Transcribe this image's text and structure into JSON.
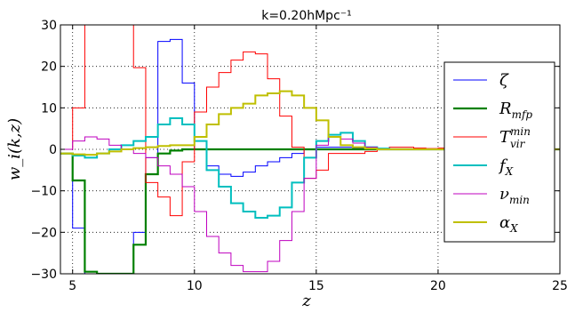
{
  "chart_data": {
    "type": "line",
    "step": true,
    "title": "k=0.20hMpc⁻¹",
    "xlabel": "z",
    "ylabel": "w_i(k,z)",
    "xlim": [
      4.5,
      25
    ],
    "ylim": [
      -30,
      30
    ],
    "x_ticks": [
      5,
      10,
      15,
      20,
      25
    ],
    "y_ticks": [
      -30,
      -20,
      -10,
      0,
      10,
      20,
      30
    ],
    "x_tick_labels": [
      "5",
      "10",
      "15",
      "20",
      "25"
    ],
    "y_tick_labels": [
      "−30",
      "−20",
      "−10",
      "0",
      "10",
      "20",
      "30"
    ],
    "grid": true,
    "legend_position": "right",
    "x_edges": [
      4.5,
      5,
      5.5,
      6,
      6.5,
      7,
      7.5,
      8,
      8.5,
      9,
      9.5,
      10,
      10.5,
      11,
      11.5,
      12,
      12.5,
      13,
      13.5,
      14,
      14.5,
      15,
      15.5,
      16,
      16.5,
      17,
      17.5,
      18,
      18.5,
      19,
      19.5,
      20,
      20.5,
      21,
      21.5,
      22,
      22.5,
      23,
      23.5,
      24,
      24.5,
      25
    ],
    "series": [
      {
        "name": "ζ",
        "sub": "",
        "sup": "",
        "color": "#0000ff",
        "width": 1,
        "values": [
          -1,
          -19,
          -30,
          -30,
          -30,
          -30,
          -20,
          -2,
          26,
          26.5,
          16,
          0,
          -4,
          -6,
          -6.5,
          -5.5,
          -4,
          -3,
          -2,
          -1,
          0,
          0.5,
          0.5,
          0.5,
          0.3,
          0.2,
          0.1,
          0,
          0,
          0,
          0,
          0,
          0,
          0,
          0,
          0,
          0,
          0,
          0,
          0,
          0
        ]
      },
      {
        "name": "R",
        "sub": "mfp",
        "sup": "",
        "color": "#008000",
        "width": 2.2,
        "values": [
          -1,
          -7.5,
          -29.5,
          -30,
          -30,
          -30,
          -23,
          -6,
          -1,
          -0.3,
          0,
          0,
          0,
          0,
          0,
          0,
          0,
          0,
          0,
          0,
          0,
          0,
          0,
          0,
          0,
          0,
          0,
          0,
          0,
          0,
          0,
          0,
          0,
          0,
          0,
          0,
          0,
          0,
          0,
          0,
          0
        ]
      },
      {
        "name": "T",
        "sub": "vir",
        "sup": "min",
        "color": "#ff0000",
        "width": 1,
        "values": [
          0,
          10,
          30,
          30,
          30,
          30,
          19.7,
          -8,
          -11.5,
          -16,
          -3,
          9,
          15,
          18.5,
          21.5,
          23.5,
          23,
          17,
          8,
          0.5,
          -7,
          -5,
          -1,
          -1,
          -1,
          -0.5,
          0,
          0.5,
          0.5,
          0.3,
          0.2,
          0.3,
          0.1,
          0,
          0,
          0,
          0,
          0,
          0,
          0,
          0
        ]
      },
      {
        "name": "f",
        "sub": "X",
        "sup": "",
        "color": "#00bfbf",
        "width": 2,
        "values": [
          -1,
          -1.5,
          -2,
          -1,
          0,
          1,
          2,
          3,
          6,
          7.5,
          6,
          2,
          -5,
          -9,
          -13,
          -15,
          -16.5,
          -16,
          -14,
          -8,
          -2,
          2,
          3.5,
          4,
          2,
          0.5,
          0.2,
          0,
          0,
          0,
          0,
          0,
          0,
          0,
          0,
          0,
          0,
          0,
          0,
          0,
          0
        ]
      },
      {
        "name": "ν",
        "sub": "min",
        "sup": "",
        "color": "#bf00bf",
        "width": 1,
        "values": [
          0,
          2,
          3,
          2.5,
          1,
          0,
          -1,
          -2,
          -4,
          -6,
          -9,
          -15,
          -21,
          -25,
          -28,
          -29.5,
          -29.5,
          -27,
          -22,
          -15,
          -7,
          1,
          3,
          2.5,
          1.5,
          0.5,
          0.1,
          0,
          0,
          0,
          0,
          0,
          0,
          0,
          0,
          0,
          0,
          0,
          0,
          0,
          0
        ]
      },
      {
        "name": "α",
        "sub": "X",
        "sup": "",
        "color": "#bfbf00",
        "width": 2,
        "values": [
          -1,
          -1.2,
          -1.3,
          -1,
          -0.5,
          0,
          0.3,
          0.5,
          0.8,
          1,
          1,
          3,
          6,
          8.5,
          10,
          11,
          13,
          13.5,
          14,
          13,
          10,
          7,
          3,
          1,
          0.5,
          0.2,
          0,
          0,
          0,
          0,
          0,
          0,
          0,
          0,
          0,
          0,
          0,
          0,
          0,
          0,
          0
        ]
      }
    ]
  }
}
